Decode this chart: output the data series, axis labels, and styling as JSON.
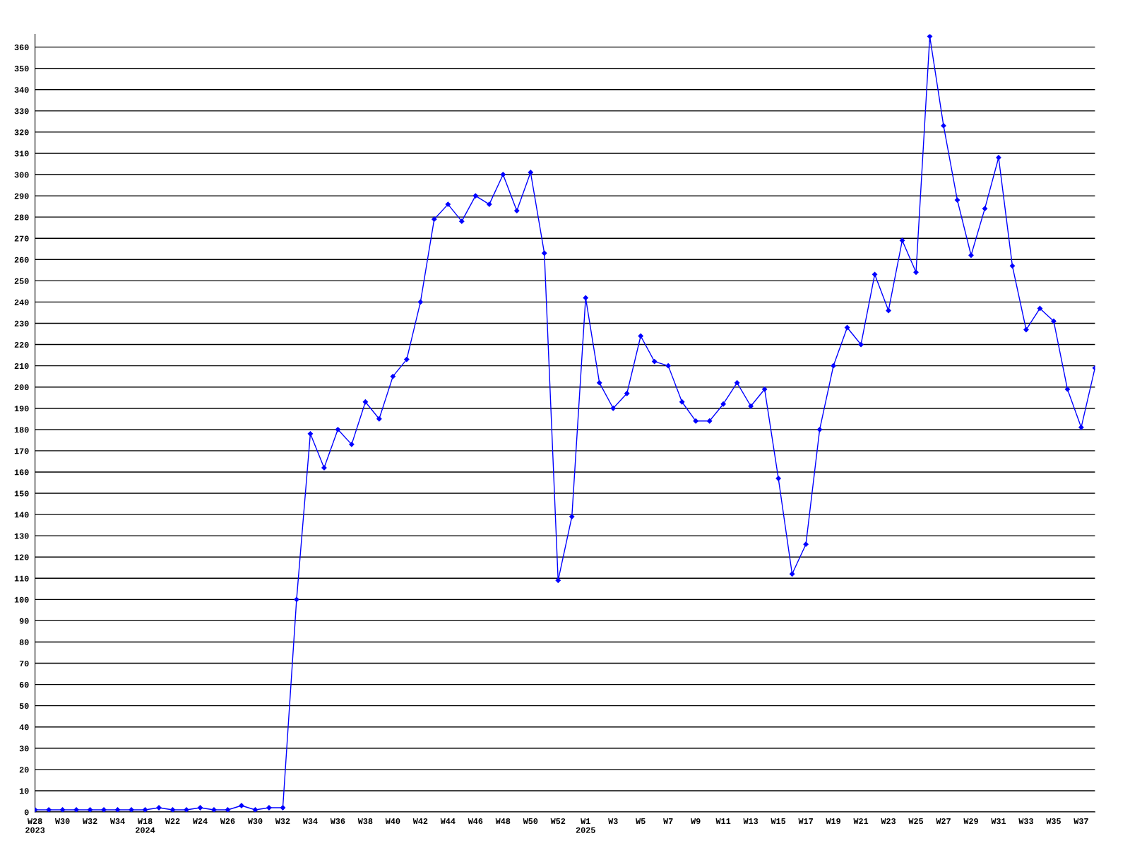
{
  "chart_data": {
    "type": "line",
    "categories": [
      "W28\n2023",
      null,
      "W30",
      null,
      "W32",
      null,
      "W34",
      null,
      "W18\n2024",
      null,
      "W22",
      null,
      "W24",
      null,
      "W26",
      null,
      "W30",
      null,
      "W32",
      null,
      "W34",
      null,
      "W36",
      null,
      "W38",
      null,
      "W40",
      null,
      "W42",
      null,
      "W44",
      null,
      "W46",
      null,
      "W48",
      null,
      "W50",
      null,
      "W52",
      null,
      "W1\n2025",
      null,
      "W3",
      null,
      "W5",
      null,
      "W7",
      null,
      "W9",
      null,
      "W11",
      null,
      "W13",
      null,
      "W15",
      null,
      "W17",
      null,
      "W19",
      null,
      "W21",
      null,
      "W23",
      null,
      "W25",
      null,
      "W27",
      null,
      "W29",
      null,
      "W31",
      null,
      "W33",
      null,
      "W35",
      null,
      "W37",
      null
    ],
    "series": [
      {
        "color": "#0000ff",
        "values": [
          1,
          1,
          1,
          1,
          1,
          1,
          1,
          1,
          1,
          2,
          1,
          1,
          2,
          1,
          1,
          3,
          1,
          2,
          2,
          100,
          178,
          162,
          180,
          173,
          193,
          185,
          205,
          213,
          240,
          279,
          286,
          278,
          290,
          286,
          300,
          283,
          301,
          263,
          109,
          139,
          242,
          202,
          190,
          197,
          224,
          212,
          210,
          193,
          184,
          184,
          192,
          202,
          191,
          199,
          157,
          112,
          126,
          180,
          210,
          228,
          220,
          253,
          236,
          269,
          254,
          365,
          323,
          288,
          262,
          284,
          308,
          257,
          227,
          237,
          231,
          199,
          181,
          209
        ]
      }
    ],
    "ylim": [
      0,
      366
    ],
    "yticks": [
      0,
      10,
      20,
      30,
      40,
      50,
      60,
      70,
      80,
      90,
      100,
      110,
      120,
      130,
      140,
      150,
      160,
      170,
      180,
      190,
      200,
      210,
      220,
      230,
      240,
      250,
      260,
      270,
      280,
      290,
      300,
      310,
      320,
      330,
      340,
      350,
      360
    ],
    "grid": "y",
    "marker": "diamond",
    "line_style": "solid"
  }
}
